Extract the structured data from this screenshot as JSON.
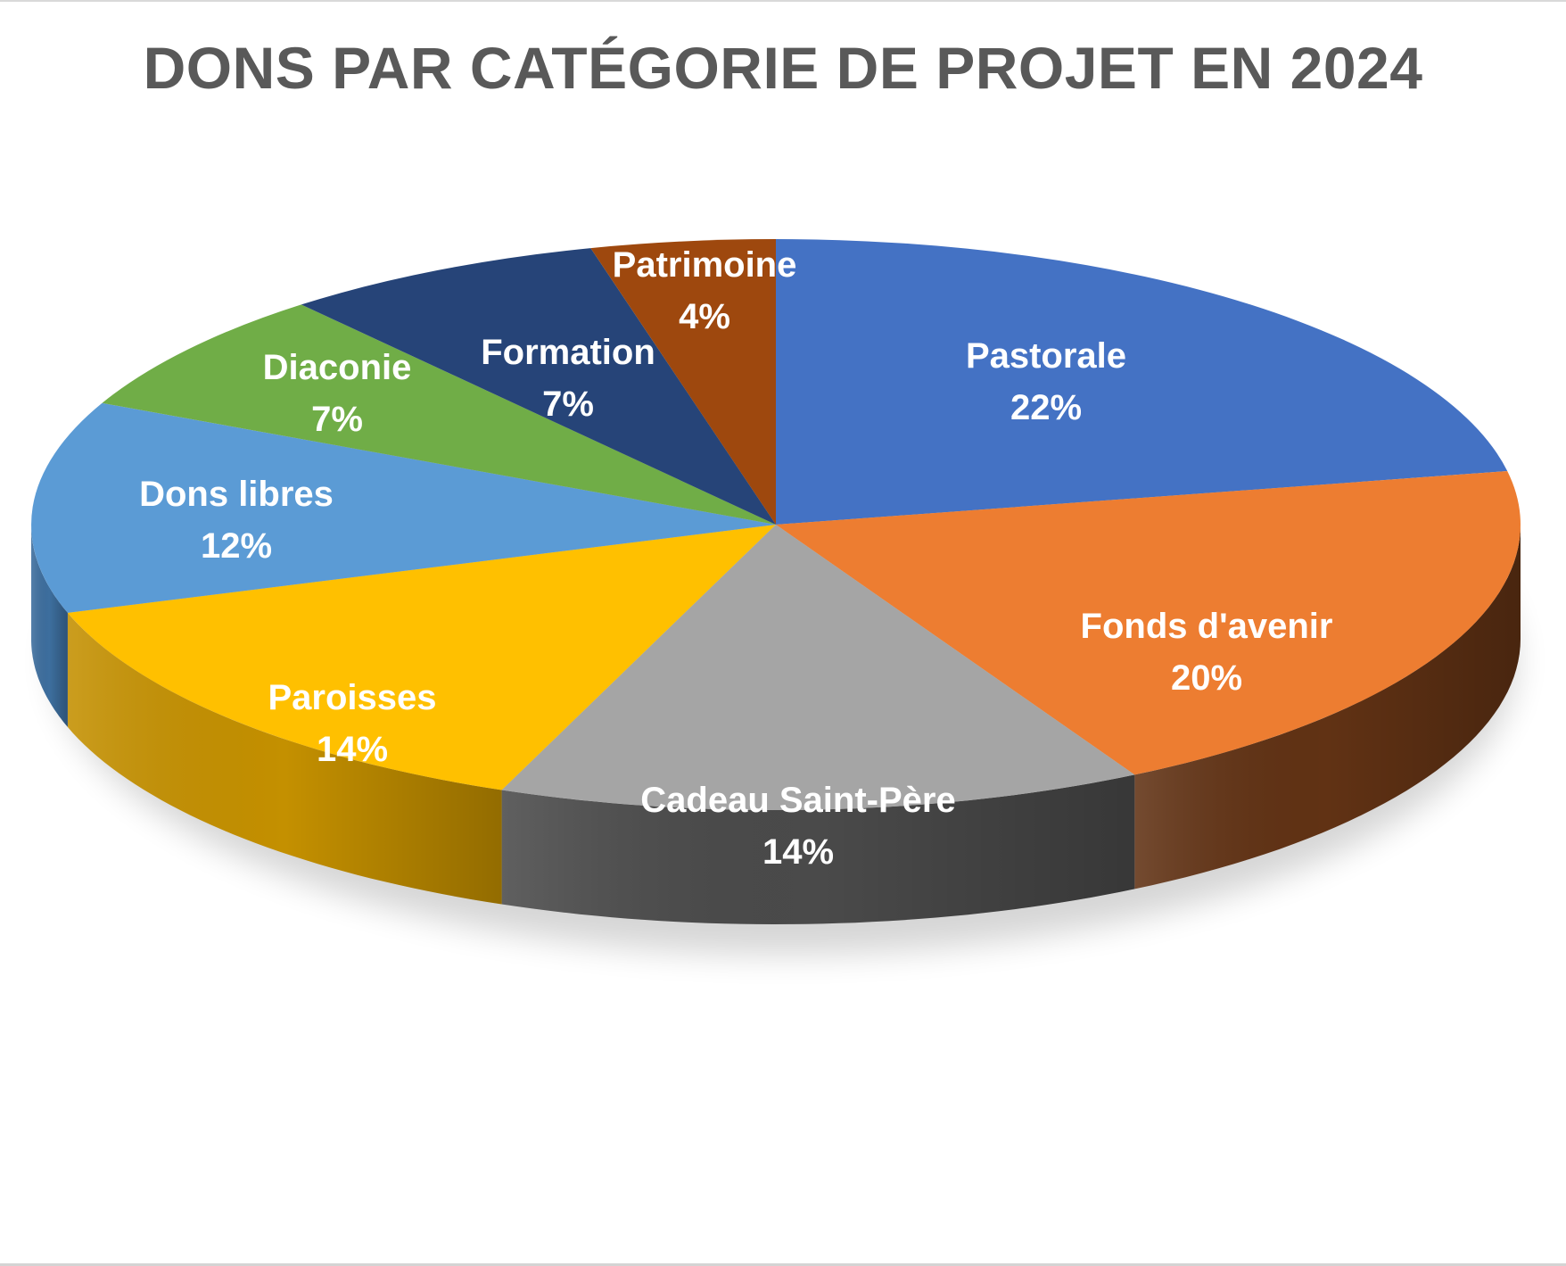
{
  "title": "DONS PAR CATÉGORIE DE PROJET EN 2024",
  "chart_data": {
    "type": "pie",
    "title": "DONS PAR CATÉGORIE DE PROJET EN 2024",
    "style": "3d",
    "start_angle_deg": 0,
    "direction": "clockwise",
    "unit": "%",
    "categories": [
      "Pastorale",
      "Fonds d'avenir",
      "Cadeau Saint-Père",
      "Paroisses",
      "Dons libres",
      "Diaconie",
      "Formation",
      "Patrimoine"
    ],
    "values": [
      22,
      20,
      14,
      14,
      12,
      7,
      7,
      4
    ],
    "labels": [
      "22%",
      "20%",
      "14%",
      "14%",
      "12%",
      "7%",
      "7%",
      "4%"
    ],
    "colors": [
      "#4472c4",
      "#ed7d31",
      "#a5a5a5",
      "#ffc000",
      "#5b9bd5",
      "#70ad47",
      "#264478",
      "#9e480e"
    ],
    "side_colors": [
      "#2c4a80",
      "#613214",
      "#4a4a4a",
      "#c49000",
      "#3d6e9e",
      "#4b7530",
      "#172b4d",
      "#612c08"
    ],
    "legend": "none",
    "data_labels": "inside (category name + percent)"
  },
  "slices": [
    {
      "name": "Pastorale",
      "pct": "22%"
    },
    {
      "name": "Fonds d'avenir",
      "pct": "20%"
    },
    {
      "name": "Cadeau Saint-Père",
      "pct": "14%"
    },
    {
      "name": "Paroisses",
      "pct": "14%"
    },
    {
      "name": "Dons libres",
      "pct": "12%"
    },
    {
      "name": "Diaconie",
      "pct": "7%"
    },
    {
      "name": "Formation",
      "pct": "7%"
    },
    {
      "name": "Patrimoine",
      "pct": "4%"
    }
  ]
}
